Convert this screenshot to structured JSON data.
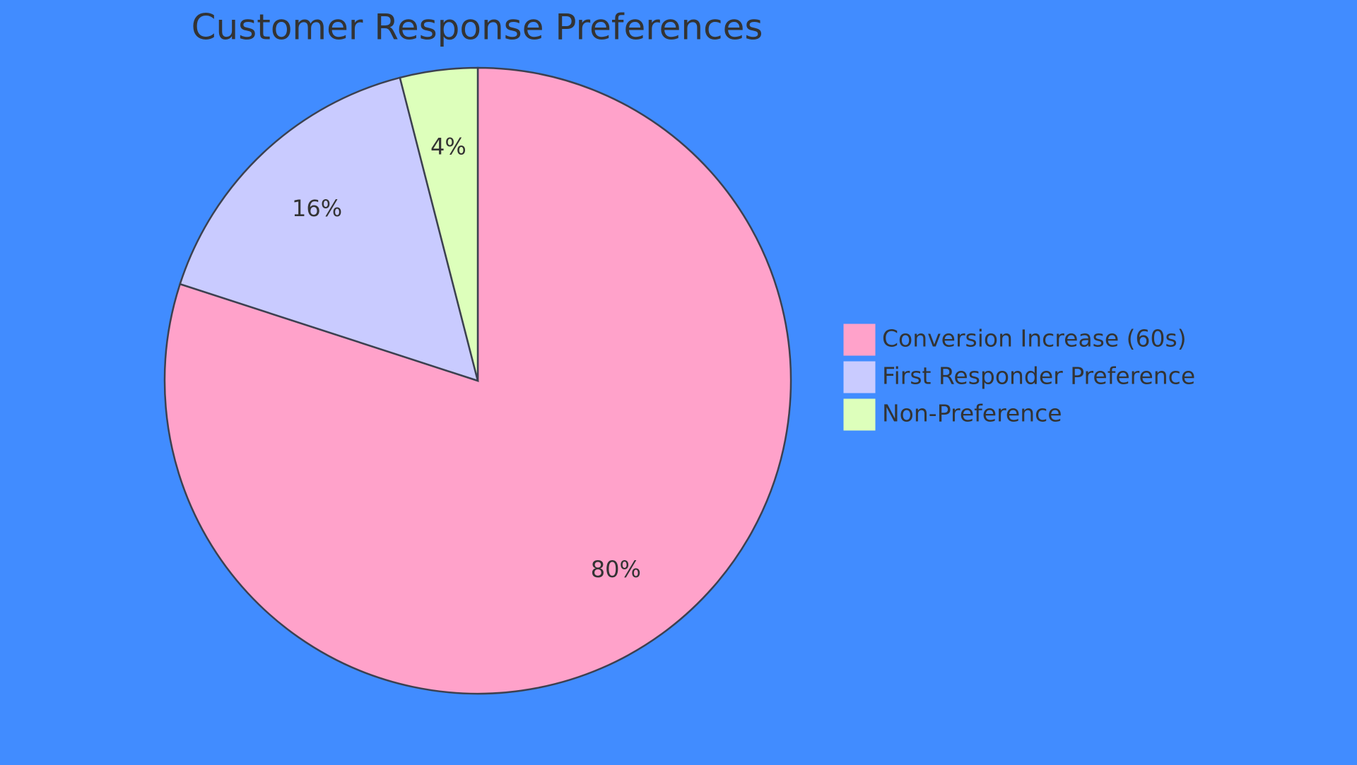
{
  "chart_data": {
    "type": "pie",
    "title": "Customer Response Preferences",
    "categories": [
      "Conversion Increase (60s)",
      "First Responder Preference",
      "Non-Preference"
    ],
    "values": [
      80,
      16,
      4
    ],
    "value_labels": [
      "80%",
      "16%",
      "4%"
    ],
    "colors": [
      "#ffa2ca",
      "#c9cbff",
      "#ddffbb"
    ],
    "legend": "right"
  }
}
